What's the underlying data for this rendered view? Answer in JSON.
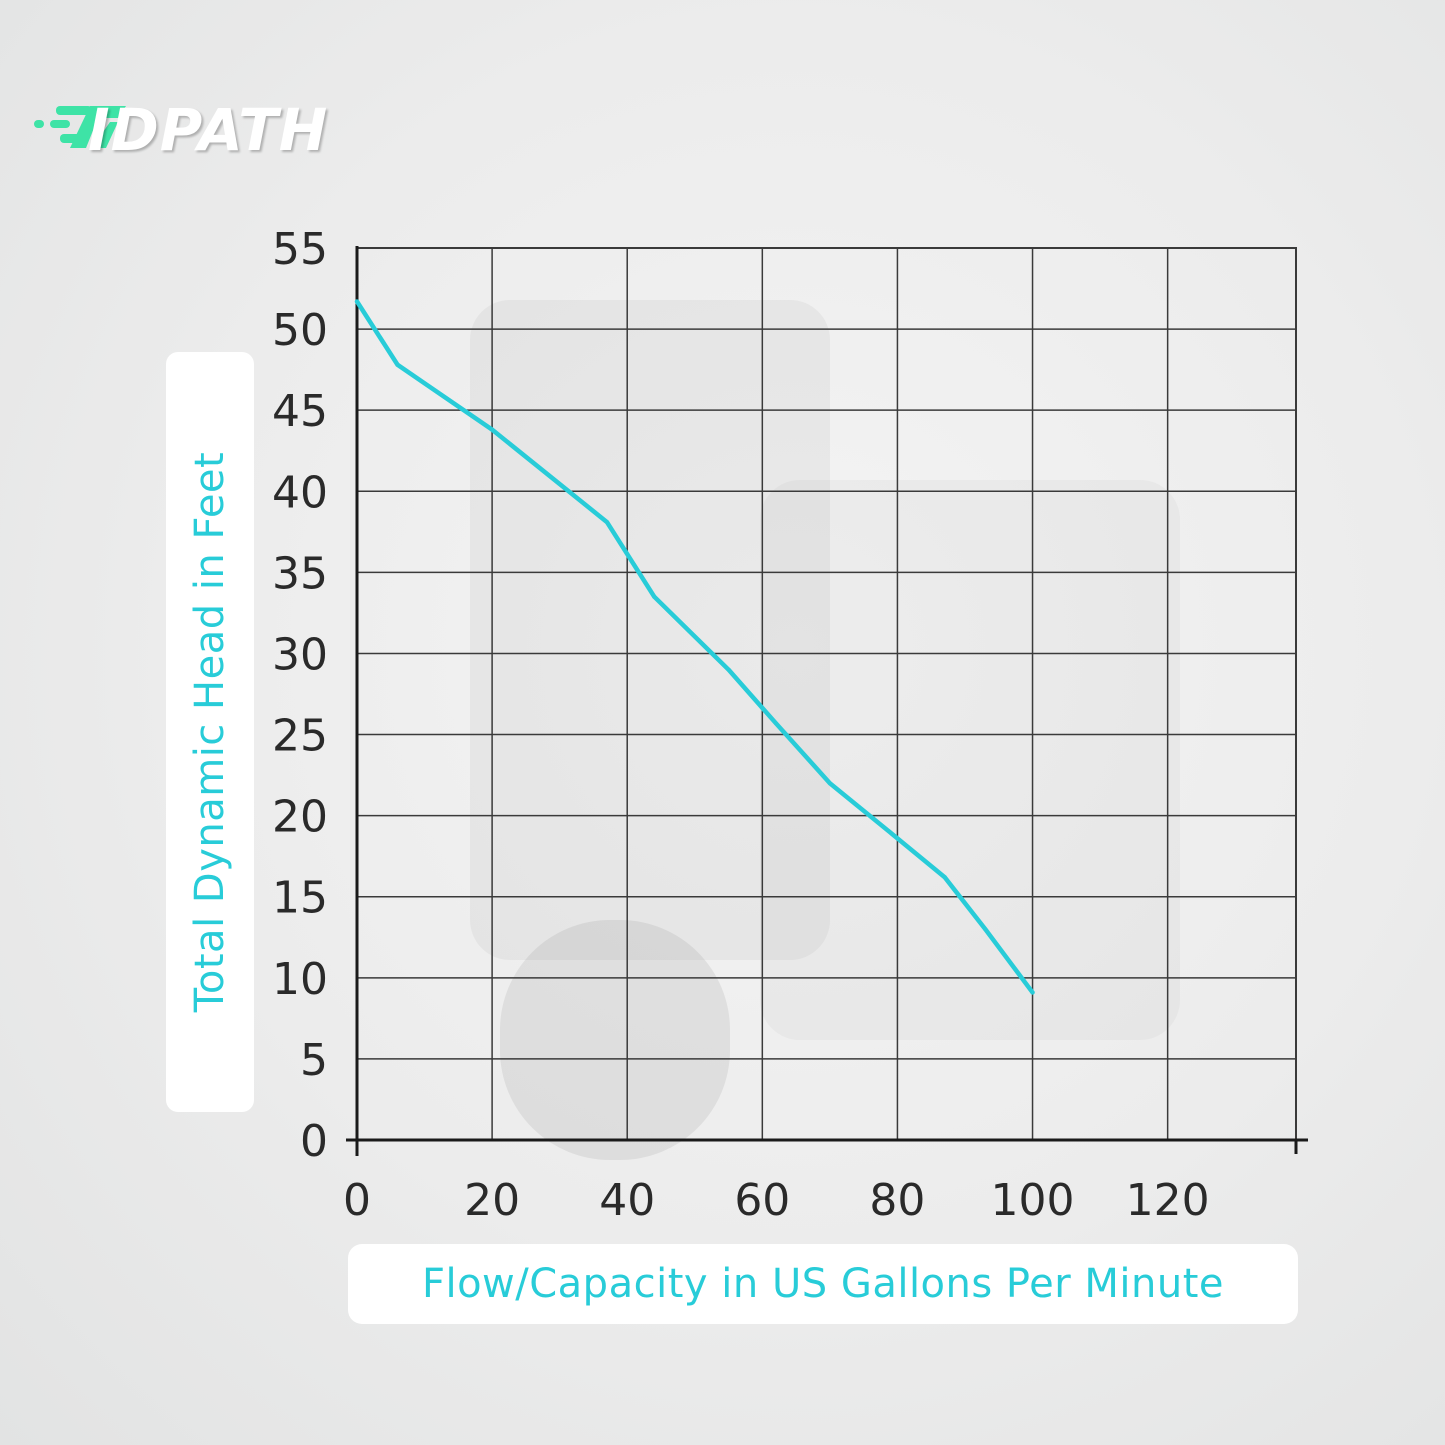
{
  "brand": {
    "logo_text": "IDPATH",
    "accent": "#3ee3a6"
  },
  "colors": {
    "line": "#28ccd8",
    "grid": "#3a3a3a"
  },
  "chart_data": {
    "type": "line",
    "title": "",
    "xlabel": "Flow/Capacity in US Gallons Per Minute",
    "ylabel": "Total Dynamic Head in Feet",
    "xlim": [
      0,
      139
    ],
    "ylim": [
      0,
      55
    ],
    "x_ticks": [
      0,
      20,
      40,
      60,
      80,
      100,
      120
    ],
    "y_ticks": [
      0,
      5,
      10,
      15,
      20,
      25,
      30,
      35,
      40,
      45,
      50,
      55
    ],
    "grid": true,
    "legend": "none",
    "series": [
      {
        "x": [
          0,
          6,
          20,
          37,
          44,
          55,
          62,
          70,
          80,
          87,
          93,
          100
        ],
        "y": [
          51.7,
          47.8,
          43.8,
          38.1,
          33.5,
          29,
          25.7,
          22,
          18.6,
          16.2,
          13,
          9.1
        ]
      }
    ]
  }
}
